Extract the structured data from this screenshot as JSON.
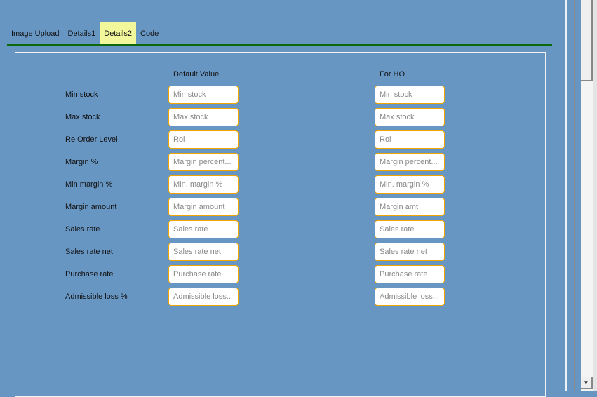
{
  "tabs": [
    {
      "label": "Image Upload"
    },
    {
      "label": "Details1"
    },
    {
      "label": "Details2",
      "active": true
    },
    {
      "label": "Code"
    }
  ],
  "columns": {
    "default": "Default Value",
    "ho": "For HO"
  },
  "rows": [
    {
      "label": "Min stock",
      "default_placeholder": "Min stock",
      "ho_placeholder": "Min stock"
    },
    {
      "label": "Max stock",
      "default_placeholder": "Max stock",
      "ho_placeholder": "Max stock"
    },
    {
      "label": "Re Order Level",
      "default_placeholder": "Rol",
      "ho_placeholder": "Rol"
    },
    {
      "label": "Margin %",
      "default_placeholder": "Margin percent...",
      "ho_placeholder": "Margin percent..."
    },
    {
      "label": "Min margin %",
      "default_placeholder": "Min. margin %",
      "ho_placeholder": "Min. margin %"
    },
    {
      "label": "Margin amount",
      "default_placeholder": "Margin amount",
      "ho_placeholder": "Margin amt"
    },
    {
      "label": "Sales rate",
      "default_placeholder": "Sales rate",
      "ho_placeholder": "Sales rate"
    },
    {
      "label": "Sales rate net",
      "default_placeholder": "Sales rate net",
      "ho_placeholder": "Sales rate net"
    },
    {
      "label": "Purchase rate",
      "default_placeholder": "Purchase rate",
      "ho_placeholder": "Purchase rate"
    },
    {
      "label": "Admissible loss %",
      "default_placeholder": "Admissible loss...",
      "ho_placeholder": "Admissible loss..."
    }
  ],
  "colors": {
    "background": "#6896c3",
    "active_tab": "#f3f79b",
    "tab_underline": "#0b6b0b",
    "input_border": "#f0a500"
  },
  "scrollbar": {
    "down_icon": "arrow-down-icon",
    "down_glyph": "▼"
  }
}
